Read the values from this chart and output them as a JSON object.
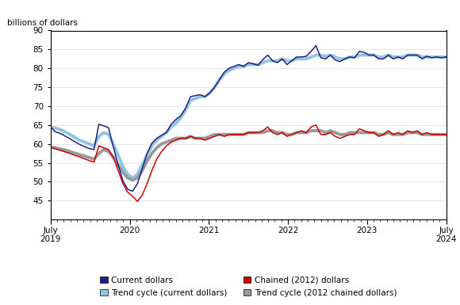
{
  "title_y_label": "billions of dollars",
  "ylim": [
    40,
    90
  ],
  "yticks": [
    45,
    50,
    55,
    60,
    65,
    70,
    75,
    80,
    85,
    90
  ],
  "colors": {
    "current": "#1f1f8c",
    "trend_current": "#92c5de",
    "chained": "#cc0000",
    "trend_chained": "#999999"
  },
  "legend_labels": [
    "Current dollars",
    "Trend cycle (current dollars)",
    "Chained (2012) dollars",
    "Trend cycle (2012 chained dollars)"
  ],
  "current_dollars": [
    64.5,
    63.2,
    62.8,
    62.1,
    61.4,
    60.6,
    59.9,
    59.3,
    58.8,
    58.5,
    65.2,
    64.8,
    64.3,
    59.2,
    54.5,
    50.2,
    48.0,
    47.5,
    49.5,
    53.5,
    57.5,
    60.2,
    61.5,
    62.3,
    63.0,
    65.2,
    66.5,
    67.5,
    69.5,
    72.5,
    72.8,
    73.0,
    72.5,
    73.5,
    75.0,
    77.0,
    79.0,
    80.0,
    80.5,
    81.0,
    80.5,
    81.5,
    81.2,
    80.8,
    82.3,
    83.5,
    82.0,
    81.5,
    82.5,
    81.0,
    82.0,
    83.0,
    83.0,
    83.2,
    84.5,
    86.0,
    82.8,
    82.5,
    83.5,
    82.2,
    81.8,
    82.5,
    83.0,
    82.8,
    84.5,
    84.2,
    83.5,
    83.5,
    82.5,
    82.5,
    83.5,
    82.5,
    83.0,
    82.5,
    83.5,
    83.5,
    83.5,
    82.5,
    83.2,
    82.8,
    83.0,
    82.8,
    83.0
  ],
  "trend_current": [
    64.5,
    64.2,
    63.8,
    63.2,
    62.5,
    61.8,
    61.0,
    60.5,
    60.0,
    59.5,
    62.0,
    63.0,
    62.5,
    60.0,
    57.0,
    54.0,
    52.0,
    51.0,
    52.0,
    54.5,
    57.0,
    59.5,
    61.0,
    62.0,
    63.0,
    64.5,
    65.5,
    67.0,
    69.0,
    71.5,
    72.0,
    72.5,
    72.5,
    73.5,
    75.0,
    77.0,
    78.5,
    79.5,
    80.0,
    80.5,
    80.5,
    81.0,
    81.0,
    81.0,
    81.5,
    82.0,
    82.0,
    82.0,
    82.5,
    82.0,
    82.0,
    82.5,
    82.5,
    82.5,
    83.0,
    83.5,
    83.5,
    83.2,
    83.5,
    83.0,
    82.5,
    82.5,
    83.0,
    83.0,
    83.5,
    83.5,
    83.5,
    83.5,
    83.0,
    83.0,
    83.5,
    83.0,
    83.0,
    83.0,
    83.5,
    83.5,
    83.5,
    83.0,
    83.0,
    83.0,
    83.0,
    83.0,
    83.0
  ],
  "chained_2012": [
    59.2,
    58.7,
    58.3,
    57.9,
    57.5,
    57.0,
    56.6,
    56.1,
    55.6,
    55.2,
    59.5,
    59.0,
    58.5,
    56.5,
    53.0,
    49.5,
    47.2,
    46.2,
    44.8,
    46.5,
    49.5,
    53.0,
    56.0,
    58.0,
    59.5,
    60.5,
    61.0,
    61.5,
    61.5,
    62.0,
    61.5,
    61.5,
    61.0,
    61.5,
    62.0,
    62.5,
    62.0,
    62.5,
    62.5,
    62.5,
    62.5,
    63.0,
    63.0,
    63.0,
    63.5,
    64.5,
    63.0,
    62.5,
    63.0,
    62.0,
    62.5,
    63.0,
    63.5,
    63.0,
    64.5,
    65.0,
    62.5,
    62.5,
    63.0,
    62.0,
    61.5,
    62.0,
    62.5,
    62.5,
    64.0,
    63.5,
    63.0,
    63.0,
    62.0,
    62.5,
    63.5,
    62.5,
    63.0,
    62.5,
    63.5,
    63.0,
    63.5,
    62.5,
    63.0,
    62.5,
    62.5,
    62.5,
    62.5
  ],
  "trend_chained": [
    59.2,
    59.0,
    58.7,
    58.4,
    58.0,
    57.6,
    57.2,
    56.8,
    56.4,
    56.0,
    57.5,
    58.5,
    58.0,
    56.5,
    54.5,
    52.5,
    51.0,
    50.5,
    51.0,
    53.0,
    55.5,
    57.5,
    59.0,
    60.0,
    60.5,
    61.0,
    61.5,
    61.5,
    61.5,
    62.0,
    61.5,
    61.5,
    61.5,
    62.0,
    62.5,
    62.5,
    62.5,
    62.5,
    62.5,
    62.5,
    62.5,
    63.0,
    63.0,
    63.0,
    63.0,
    63.5,
    63.5,
    63.0,
    63.0,
    62.5,
    62.5,
    63.0,
    63.0,
    63.0,
    63.5,
    63.5,
    63.5,
    63.0,
    63.5,
    63.0,
    62.5,
    62.5,
    63.0,
    63.0,
    63.0,
    63.0,
    63.0,
    63.0,
    62.5,
    62.5,
    63.0,
    62.5,
    62.5,
    62.5,
    63.0,
    63.0,
    63.0,
    62.5,
    62.5,
    62.5,
    62.5,
    62.5,
    62.5
  ]
}
